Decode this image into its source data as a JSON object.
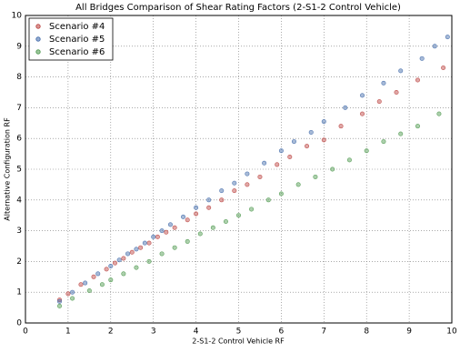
{
  "chart_data": {
    "type": "scatter",
    "title": "All Bridges Comparison of Shear Rating Factors (2-S1-2 Control Vehicle)",
    "xlabel": "2-S1-2 Control Vehicle RF",
    "ylabel": "Alternative Configuration RF",
    "xlim": [
      0,
      10
    ],
    "ylim": [
      0,
      10
    ],
    "xticks": [
      0,
      1,
      2,
      3,
      4,
      5,
      6,
      7,
      8,
      9,
      10
    ],
    "yticks": [
      0,
      1,
      2,
      3,
      4,
      5,
      6,
      7,
      8,
      9,
      10
    ],
    "grid": true,
    "legend": "upper-left",
    "series": [
      {
        "name": "Scenario #4",
        "color": "#c0504d",
        "x": [
          0.8,
          1.0,
          1.3,
          1.6,
          1.9,
          2.1,
          2.3,
          2.5,
          2.7,
          2.9,
          3.1,
          3.3,
          3.5,
          3.8,
          4.0,
          4.3,
          4.6,
          4.9,
          5.2,
          5.5,
          5.9,
          6.2,
          6.6,
          7.0,
          7.4,
          7.9,
          8.3,
          8.7,
          9.2,
          9.8
        ],
        "values": [
          0.75,
          0.95,
          1.25,
          1.5,
          1.75,
          1.95,
          2.1,
          2.3,
          2.45,
          2.6,
          2.8,
          2.95,
          3.1,
          3.35,
          3.55,
          3.75,
          4.0,
          4.3,
          4.5,
          4.75,
          5.15,
          5.4,
          5.75,
          5.95,
          6.4,
          6.8,
          7.2,
          7.5,
          7.9,
          8.3
        ]
      },
      {
        "name": "Scenario #5",
        "color": "#4f75b0",
        "x": [
          0.8,
          1.1,
          1.4,
          1.7,
          2.0,
          2.2,
          2.4,
          2.6,
          2.8,
          3.0,
          3.2,
          3.4,
          3.7,
          4.0,
          4.3,
          4.6,
          4.9,
          5.2,
          5.6,
          6.0,
          6.3,
          6.7,
          7.0,
          7.5,
          7.9,
          8.4,
          8.8,
          9.3,
          9.6,
          9.9
        ],
        "values": [
          0.7,
          1.0,
          1.3,
          1.6,
          1.85,
          2.05,
          2.25,
          2.4,
          2.6,
          2.8,
          3.0,
          3.2,
          3.45,
          3.75,
          4.0,
          4.3,
          4.55,
          4.85,
          5.2,
          5.6,
          5.9,
          6.2,
          6.55,
          7.0,
          7.4,
          7.8,
          8.2,
          8.6,
          9.0,
          9.3
        ]
      },
      {
        "name": "Scenario #6",
        "color": "#5aa05a",
        "x": [
          0.8,
          1.1,
          1.5,
          1.8,
          2.0,
          2.3,
          2.6,
          2.9,
          3.2,
          3.5,
          3.8,
          4.1,
          4.4,
          4.7,
          5.0,
          5.3,
          5.7,
          6.0,
          6.4,
          6.8,
          7.2,
          7.6,
          8.0,
          8.4,
          8.8,
          9.2,
          9.7
        ],
        "values": [
          0.55,
          0.8,
          1.05,
          1.25,
          1.4,
          1.6,
          1.8,
          2.0,
          2.25,
          2.45,
          2.65,
          2.9,
          3.1,
          3.3,
          3.5,
          3.7,
          4.0,
          4.2,
          4.5,
          4.75,
          5.0,
          5.3,
          5.6,
          5.9,
          6.15,
          6.4,
          6.8
        ]
      }
    ]
  }
}
